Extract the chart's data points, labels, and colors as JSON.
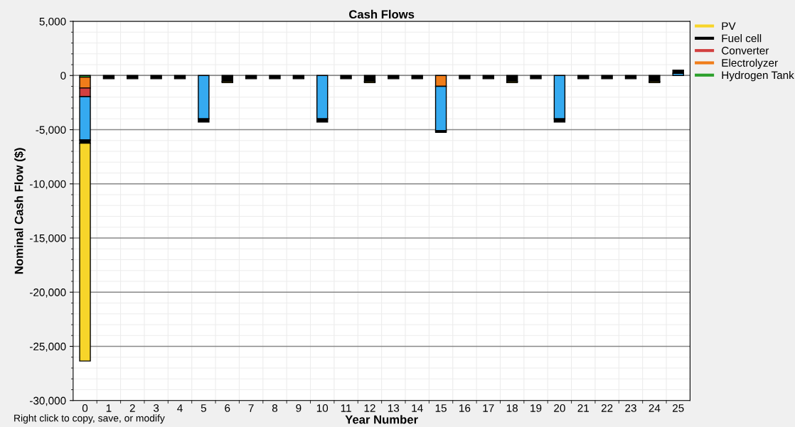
{
  "chart_data": {
    "type": "bar",
    "title": "Cash Flows",
    "xlabel": "Year Number",
    "ylabel": "Nominal Cash Flow ($)",
    "categories": [
      "0",
      "1",
      "2",
      "3",
      "4",
      "5",
      "6",
      "7",
      "8",
      "9",
      "10",
      "11",
      "12",
      "13",
      "14",
      "15",
      "16",
      "17",
      "18",
      "19",
      "20",
      "21",
      "22",
      "23",
      "24",
      "25"
    ],
    "stacked": true,
    "series": [
      {
        "name": "Hydrogen Tank",
        "color": "#2ca02c",
        "values": [
          -150,
          null,
          null,
          null,
          null,
          null,
          null,
          null,
          null,
          null,
          null,
          null,
          null,
          null,
          null,
          null,
          null,
          null,
          null,
          null,
          null,
          null,
          null,
          null,
          null,
          null
        ]
      },
      {
        "name": "Electrolyzer",
        "color": "#f07d1a",
        "values": [
          -1000,
          null,
          null,
          null,
          null,
          null,
          null,
          null,
          null,
          null,
          null,
          null,
          null,
          null,
          null,
          -1000,
          null,
          null,
          null,
          null,
          null,
          null,
          null,
          null,
          null,
          null
        ]
      },
      {
        "name": "Converter",
        "color": "#d24040",
        "values": [
          -800,
          null,
          null,
          null,
          null,
          null,
          null,
          null,
          null,
          null,
          null,
          null,
          null,
          null,
          null,
          null,
          null,
          null,
          null,
          null,
          null,
          null,
          null,
          null,
          null,
          null
        ]
      },
      {
        "color": "#35aaf0",
        "values": [
          -4000,
          null,
          null,
          null,
          null,
          -4000,
          null,
          null,
          null,
          null,
          -4000,
          null,
          null,
          null,
          null,
          -4100,
          null,
          null,
          null,
          null,
          -4000,
          null,
          null,
          null,
          null,
          200
        ]
      },
      {
        "name": "Fuel cell",
        "color": "#000000",
        "values": [
          -300,
          -300,
          -300,
          -300,
          -300,
          -300,
          -550,
          -300,
          -300,
          -300,
          -300,
          -300,
          -550,
          -300,
          -300,
          -150,
          -300,
          -300,
          -550,
          -300,
          -300,
          -300,
          -300,
          -300,
          -550,
          300
        ]
      },
      {
        "name": "PV",
        "color": "#f7d52a",
        "values": [
          -20100,
          null,
          null,
          null,
          null,
          null,
          -100,
          null,
          null,
          null,
          null,
          null,
          -100,
          null,
          null,
          null,
          null,
          null,
          -100,
          null,
          null,
          null,
          null,
          null,
          -100,
          null
        ]
      }
    ],
    "ylim": [
      -30000,
      5000
    ],
    "yticks": [
      {
        "value": 5000,
        "label": "5,000"
      },
      {
        "value": 0,
        "label": "0"
      },
      {
        "value": -5000,
        "label": "-5,000"
      },
      {
        "value": -10000,
        "label": "-10,000"
      },
      {
        "value": -15000,
        "label": "-15,000"
      },
      {
        "value": -20000,
        "label": "-20,000"
      },
      {
        "value": -25000,
        "label": "-25,000"
      },
      {
        "value": -30000,
        "label": "-30,000"
      }
    ],
    "grid": true,
    "legend": "right",
    "annotations": [
      "Right click to copy, save, or modify"
    ]
  }
}
